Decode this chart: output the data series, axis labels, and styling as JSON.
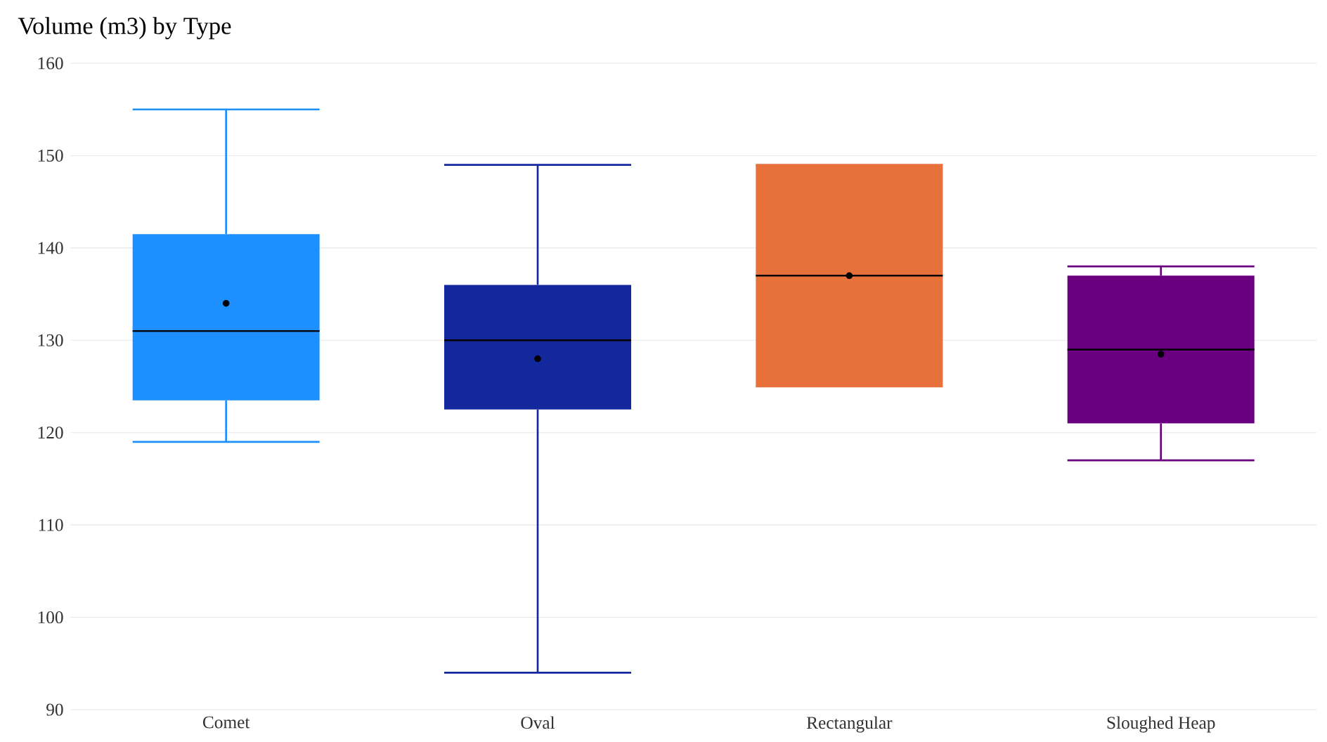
{
  "chart_data": {
    "type": "box",
    "title": "Volume (m3) by Type",
    "categories": [
      "Comet",
      "Oval",
      "Rectangular",
      "Sloughed Heap"
    ],
    "colors": [
      "#1e8fff",
      "#14289e",
      "#e8703a",
      "#6a0080"
    ],
    "boxes": [
      {
        "low": 119,
        "q1": 123.5,
        "median": 131,
        "q3": 141.5,
        "high": 155,
        "mean": 134
      },
      {
        "low": 94,
        "q1": 122.5,
        "median": 130,
        "q3": 136,
        "high": 149,
        "mean": 128
      },
      {
        "low": 125,
        "q1": 125,
        "median": 137,
        "q3": 149,
        "high": 149,
        "mean": 137
      },
      {
        "low": 117,
        "q1": 121,
        "median": 129,
        "q3": 137,
        "high": 138,
        "mean": 128.5
      }
    ],
    "ylim": [
      90,
      160
    ],
    "yticks": [
      90,
      100,
      110,
      120,
      130,
      140,
      150,
      160
    ],
    "grid": "y"
  }
}
